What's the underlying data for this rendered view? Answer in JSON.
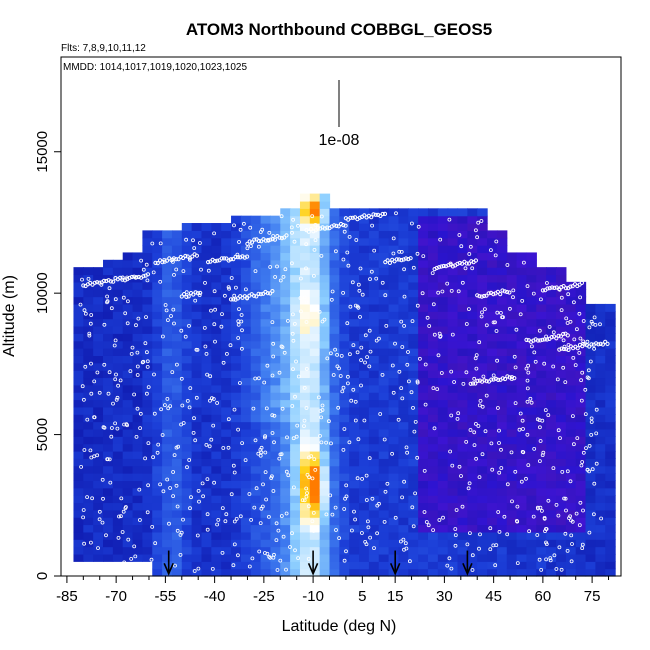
{
  "chart_data": {
    "type": "heatmap",
    "title": "ATOM3 Northbound COBBGL_GEOS5",
    "annotations": {
      "flights": "Flts: 7,8,9,10,11,12",
      "dates": "MMDD: 1014,1017,1019,1020,1023,1025",
      "scale_label": "1e-08"
    },
    "xlabel": "Latitude (deg N)",
    "ylabel": "Altitude (m)",
    "xlim": [
      -85,
      80
    ],
    "ylim": [
      0,
      18000
    ],
    "x_ticks": [
      -85,
      -70,
      -55,
      -40,
      -25,
      -10,
      5,
      15,
      30,
      45,
      60,
      75
    ],
    "y_ticks": [
      0,
      5000,
      10000,
      15000
    ],
    "arrow_latitudes": [
      -54,
      -10,
      15,
      37
    ],
    "colormap": [
      "#0a0a9e",
      "#1c3fd8",
      "#3f7cf0",
      "#8fd0ff",
      "#ffffff",
      "#ffd21a",
      "#ff7a00"
    ],
    "field_peaks": [
      {
        "latitude": -10,
        "altitude": 3200,
        "level": "max"
      },
      {
        "latitude": -10,
        "altitude": 12800,
        "level": "high"
      }
    ],
    "grid": false,
    "legend": "none"
  }
}
